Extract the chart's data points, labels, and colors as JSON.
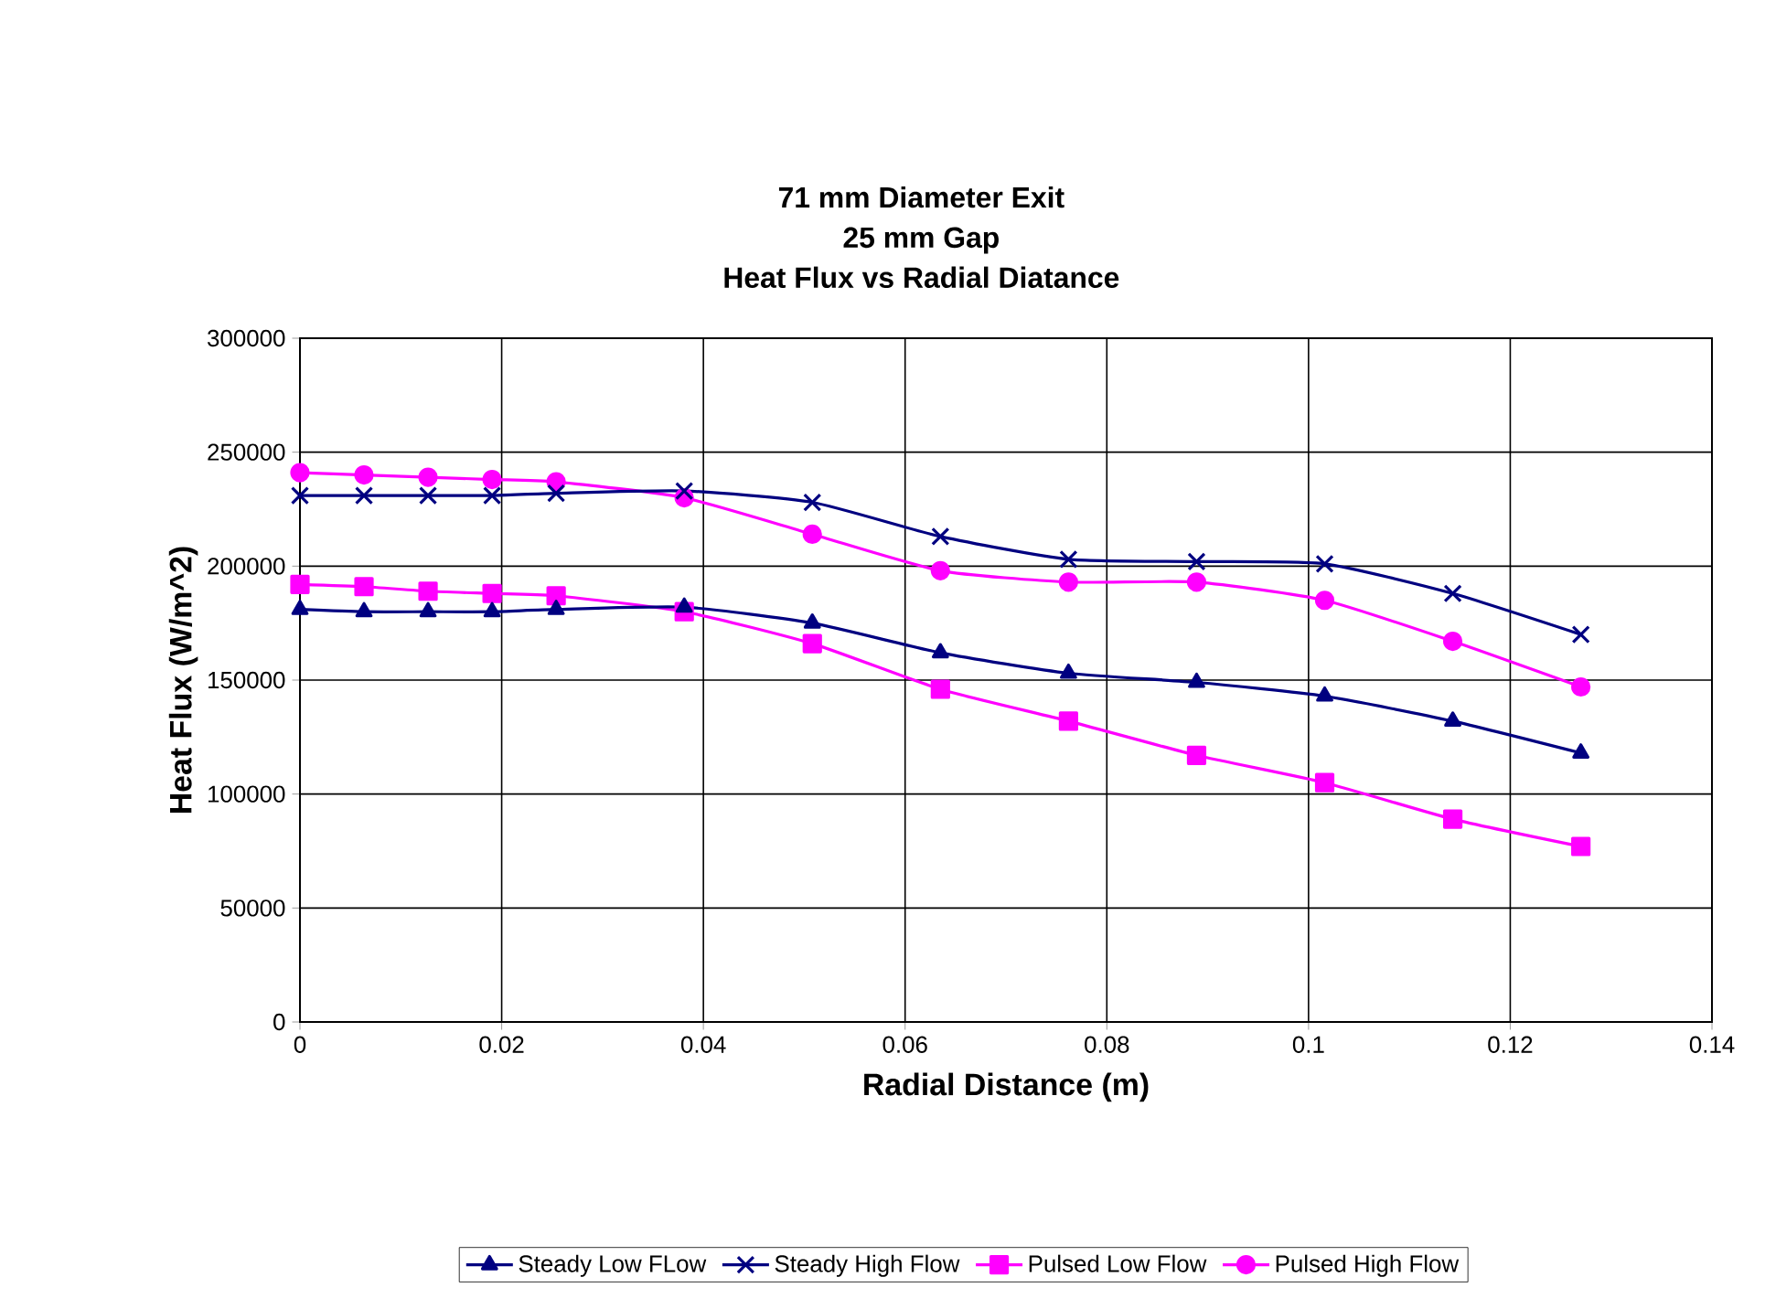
{
  "chart_data": {
    "type": "line",
    "title": "71 mm Diameter Exit\n25 mm Gap\nHeat Flux vs Radial Diatance",
    "xlabel": "Radial Distance (m)",
    "ylabel": "Heat Flux (W/m^2)",
    "x": [
      0,
      0.00635,
      0.0127,
      0.01905,
      0.0254,
      0.0381,
      0.0508,
      0.0635,
      0.0762,
      0.0889,
      0.1016,
      0.1143,
      0.127
    ],
    "series": [
      {
        "name": "Steady Low FLow",
        "color": "#000080",
        "marker": "triangle",
        "values": [
          181000,
          180000,
          180000,
          180000,
          181000,
          182000,
          175000,
          162000,
          153000,
          149000,
          143000,
          132000,
          118000
        ]
      },
      {
        "name": "Steady High Flow",
        "color": "#000080",
        "marker": "cross",
        "values": [
          231000,
          231000,
          231000,
          231000,
          232000,
          233000,
          228000,
          213000,
          203000,
          202000,
          201000,
          188000,
          170000
        ]
      },
      {
        "name": "Pulsed Low Flow",
        "color": "#ff00ff",
        "marker": "square",
        "values": [
          192000,
          191000,
          189000,
          188000,
          187000,
          180000,
          166000,
          146000,
          132000,
          117000,
          105000,
          89000,
          77000
        ]
      },
      {
        "name": "Pulsed High Flow",
        "color": "#ff00ff",
        "marker": "circle",
        "values": [
          241000,
          240000,
          239000,
          238000,
          237000,
          230000,
          214000,
          198000,
          193000,
          193000,
          185000,
          167000,
          147000
        ]
      }
    ],
    "xlim": [
      0,
      0.14
    ],
    "xticks": [
      0,
      0.02,
      0.04,
      0.06,
      0.08,
      0.1,
      0.12,
      0.14
    ],
    "ylim": [
      0,
      300000
    ],
    "yticks": [
      0,
      50000,
      100000,
      150000,
      200000,
      250000,
      300000
    ],
    "grid": true,
    "legend": "bottom",
    "line_style": "solid"
  }
}
